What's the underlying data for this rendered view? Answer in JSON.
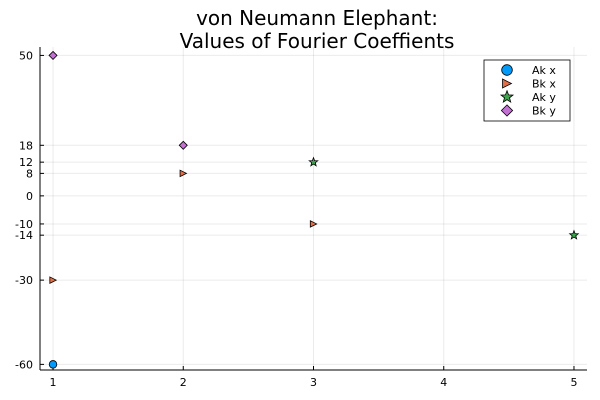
{
  "chart_data": {
    "type": "scatter",
    "title_lines": [
      "von Neumann Elephant:",
      "Values of Fourier Coeffients"
    ],
    "xlabel": "",
    "ylabel": "",
    "xlim": [
      0.9,
      5.1
    ],
    "ylim": [
      -62,
      53
    ],
    "xticks": [
      1,
      2,
      3,
      4,
      5
    ],
    "yticks": [
      50,
      18,
      12,
      8,
      0,
      -10,
      -14,
      -30,
      -60
    ],
    "grid": true,
    "legend_position": "top-right",
    "series": [
      {
        "name": "Ak x",
        "marker": "circle",
        "color": "#009AFA",
        "points": [
          [
            1,
            -60
          ]
        ]
      },
      {
        "name": "Bk x",
        "marker": "triangle-right",
        "color": "#E36F47",
        "points": [
          [
            1,
            -30
          ],
          [
            2,
            8
          ],
          [
            3,
            -10
          ]
        ]
      },
      {
        "name": "Ak y",
        "marker": "star",
        "color": "#3EA44E",
        "points": [
          [
            3,
            12
          ],
          [
            5,
            -14
          ]
        ]
      },
      {
        "name": "Bk y",
        "marker": "diamond",
        "color": "#C271D2",
        "points": [
          [
            1,
            50
          ],
          [
            2,
            18
          ]
        ]
      }
    ]
  }
}
